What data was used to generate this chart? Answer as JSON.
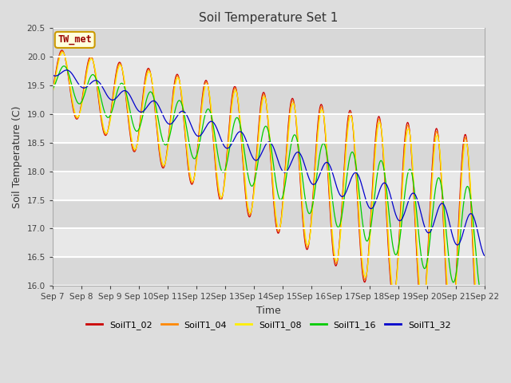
{
  "title": "Soil Temperature Set 1",
  "xlabel": "Time",
  "ylabel": "Soil Temperature (C)",
  "ylim": [
    16.0,
    20.5
  ],
  "xlim": [
    0,
    15
  ],
  "annotation": "TW_met",
  "annotation_color": "#990000",
  "annotation_bg": "#ffffdd",
  "annotation_border": "#cc9900",
  "bg_color": "#dddddd",
  "plot_bg": "#ebebeb",
  "grid_color": "#ffffff",
  "x_ticks": [
    0,
    1,
    2,
    3,
    4,
    5,
    6,
    7,
    8,
    9,
    10,
    11,
    12,
    13,
    14,
    15
  ],
  "x_labels": [
    "Sep 7",
    "Sep 8",
    "Sep 9",
    "Sep 10",
    "Sep 11",
    "Sep 12",
    "Sep 13",
    "Sep 14",
    "Sep 15",
    "Sep 16",
    "Sep 17",
    "Sep 18",
    "Sep 19",
    "Sep 20",
    "Sep 21",
    "Sep 22"
  ],
  "series": [
    {
      "label": "SoilT1_02",
      "color": "#cc0000"
    },
    {
      "label": "SoilT1_04",
      "color": "#ff8800"
    },
    {
      "label": "SoilT1_08",
      "color": "#ffee00"
    },
    {
      "label": "SoilT1_16",
      "color": "#00cc00"
    },
    {
      "label": "SoilT1_32",
      "color": "#0000cc"
    }
  ]
}
